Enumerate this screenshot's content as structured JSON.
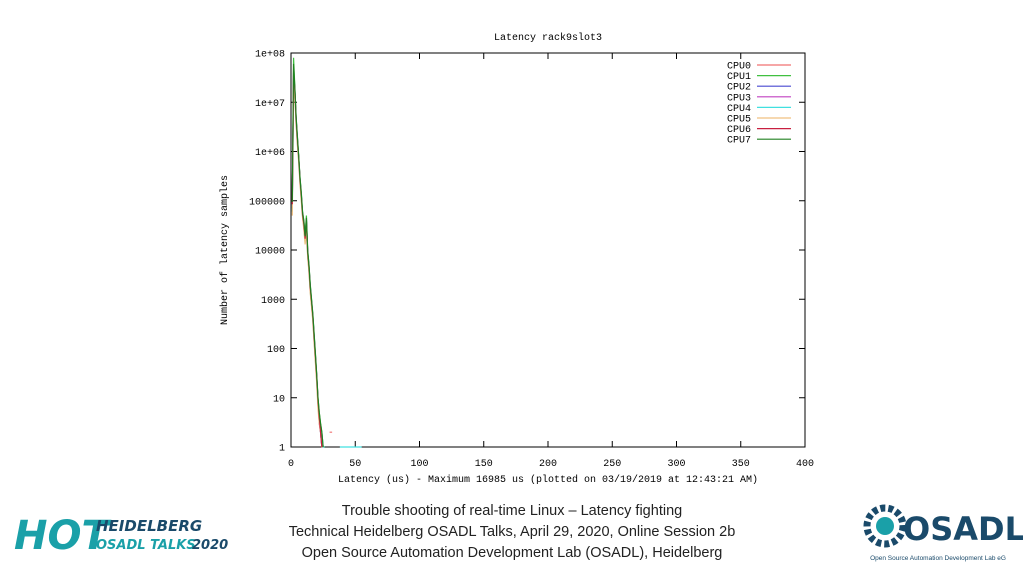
{
  "chart_data": {
    "type": "line",
    "title": "Latency rack9slot3",
    "x_label": "Latency (us) - Maximum 16985 us (plotted on 03/19/2019 at 12:43:21 AM)",
    "y_label": "Number of latency samples",
    "x": [
      0,
      1,
      2,
      3,
      4,
      5,
      6,
      7,
      8,
      9,
      10,
      11,
      12,
      13,
      14,
      15,
      16,
      17,
      18,
      19,
      20,
      21,
      22,
      23,
      24,
      25,
      26,
      30,
      32,
      38,
      45,
      55,
      200
    ],
    "series": [
      {
        "name": "CPU0",
        "color": "#f07070",
        "values": [
          null,
          90000,
          30000000,
          15000000,
          4000000,
          1500000,
          700000,
          250000,
          120000,
          50000,
          30000,
          15000,
          30000,
          8000,
          4000,
          1500,
          800,
          400,
          150,
          60,
          25,
          8,
          4,
          2,
          1,
          1,
          null,
          2,
          2,
          null,
          null,
          null,
          null
        ]
      },
      {
        "name": "CPU1",
        "color": "#40c040",
        "values": [
          null,
          100000,
          80000000,
          20000000,
          5000000,
          2000000,
          800000,
          300000,
          150000,
          60000,
          40000,
          20000,
          50000,
          10000,
          5000,
          2000,
          1000,
          500,
          200,
          80,
          30,
          10,
          5,
          3,
          2,
          1,
          1,
          null,
          null,
          null,
          null,
          null,
          null
        ]
      },
      {
        "name": "CPU2",
        "color": "#4848d0",
        "values": [
          null,
          80000,
          40000000,
          18000000,
          4500000,
          1800000,
          750000,
          280000,
          130000,
          55000,
          35000,
          18000,
          40000,
          9000,
          4500,
          1800,
          900,
          450,
          180,
          70,
          28,
          9,
          4,
          2,
          1,
          null,
          null,
          null,
          null,
          null,
          null,
          null,
          null
        ]
      },
      {
        "name": "CPU3",
        "color": "#c040c0",
        "values": [
          null,
          70000,
          35000000,
          16000000,
          4200000,
          1600000,
          720000,
          260000,
          125000,
          52000,
          32000,
          16000,
          35000,
          8500,
          4200,
          1600,
          850,
          420,
          160,
          65,
          26,
          8,
          3,
          2,
          1,
          null,
          null,
          null,
          null,
          null,
          null,
          null,
          1
        ]
      },
      {
        "name": "CPU4",
        "color": "#40e0e0",
        "values": [
          null,
          60000,
          25000000,
          14000000,
          3800000,
          1400000,
          650000,
          240000,
          110000,
          48000,
          28000,
          14000,
          28000,
          7500,
          3800,
          1400,
          750,
          380,
          140,
          55,
          22,
          7,
          4,
          2,
          2,
          1,
          1,
          null,
          null,
          1,
          1,
          1,
          null
        ]
      },
      {
        "name": "CPU5",
        "color": "#f0c080",
        "values": [
          null,
          50000,
          20000000,
          12000000,
          3500000,
          1300000,
          600000,
          220000,
          100000,
          45000,
          26000,
          13000,
          25000,
          7000,
          3500,
          1300,
          700,
          350,
          130,
          50,
          20,
          6,
          3,
          2,
          1,
          null,
          null,
          null,
          null,
          null,
          null,
          null,
          null
        ]
      },
      {
        "name": "CPU6",
        "color": "#c82040",
        "values": [
          null,
          85000,
          45000000,
          17000000,
          4400000,
          1700000,
          740000,
          270000,
          128000,
          53000,
          33000,
          17000,
          38000,
          8800,
          4400,
          1700,
          880,
          440,
          170,
          68,
          27,
          9,
          4,
          2,
          1,
          null,
          null,
          null,
          null,
          null,
          null,
          null,
          null
        ]
      },
      {
        "name": "CPU7",
        "color": "#208020",
        "values": [
          null,
          95000,
          60000000,
          19000000,
          4800000,
          1900000,
          780000,
          290000,
          140000,
          58000,
          38000,
          19000,
          45000,
          9500,
          4800,
          1900,
          950,
          480,
          190,
          75,
          29,
          10,
          5,
          3,
          2,
          1,
          null,
          null,
          null,
          null,
          null,
          null,
          null
        ]
      }
    ],
    "xlim": [
      0,
      400
    ],
    "xticks": [
      0,
      50,
      100,
      150,
      200,
      250,
      300,
      350,
      400
    ],
    "ylim": [
      1,
      100000000
    ],
    "log_y": true,
    "yticks": [
      1,
      10,
      100,
      1000,
      10000,
      100000,
      {
        "value": 1000000,
        "label": "1e+06"
      },
      {
        "value": 10000000,
        "label": "1e+07"
      },
      {
        "value": 100000000,
        "label": "1e+08"
      }
    ],
    "grid": false,
    "legend": "upper right"
  },
  "footer": {
    "lines": [
      "Trouble shooting of real-time Linux – Latency fighting",
      "Technical Heidelberg OSADL Talks, April 29, 2020, Online Session 2b",
      "Open Source Automation Development Lab (OSADL), Heidelberg"
    ]
  },
  "logos": {
    "left": {
      "big": "HOT",
      "line1": "HEIDELBERG",
      "line2a": "OSADL TALKS",
      "line2b": "2020"
    },
    "right": {
      "name": "OSADL",
      "sub": "Open Source Automation Development Lab eG"
    }
  }
}
